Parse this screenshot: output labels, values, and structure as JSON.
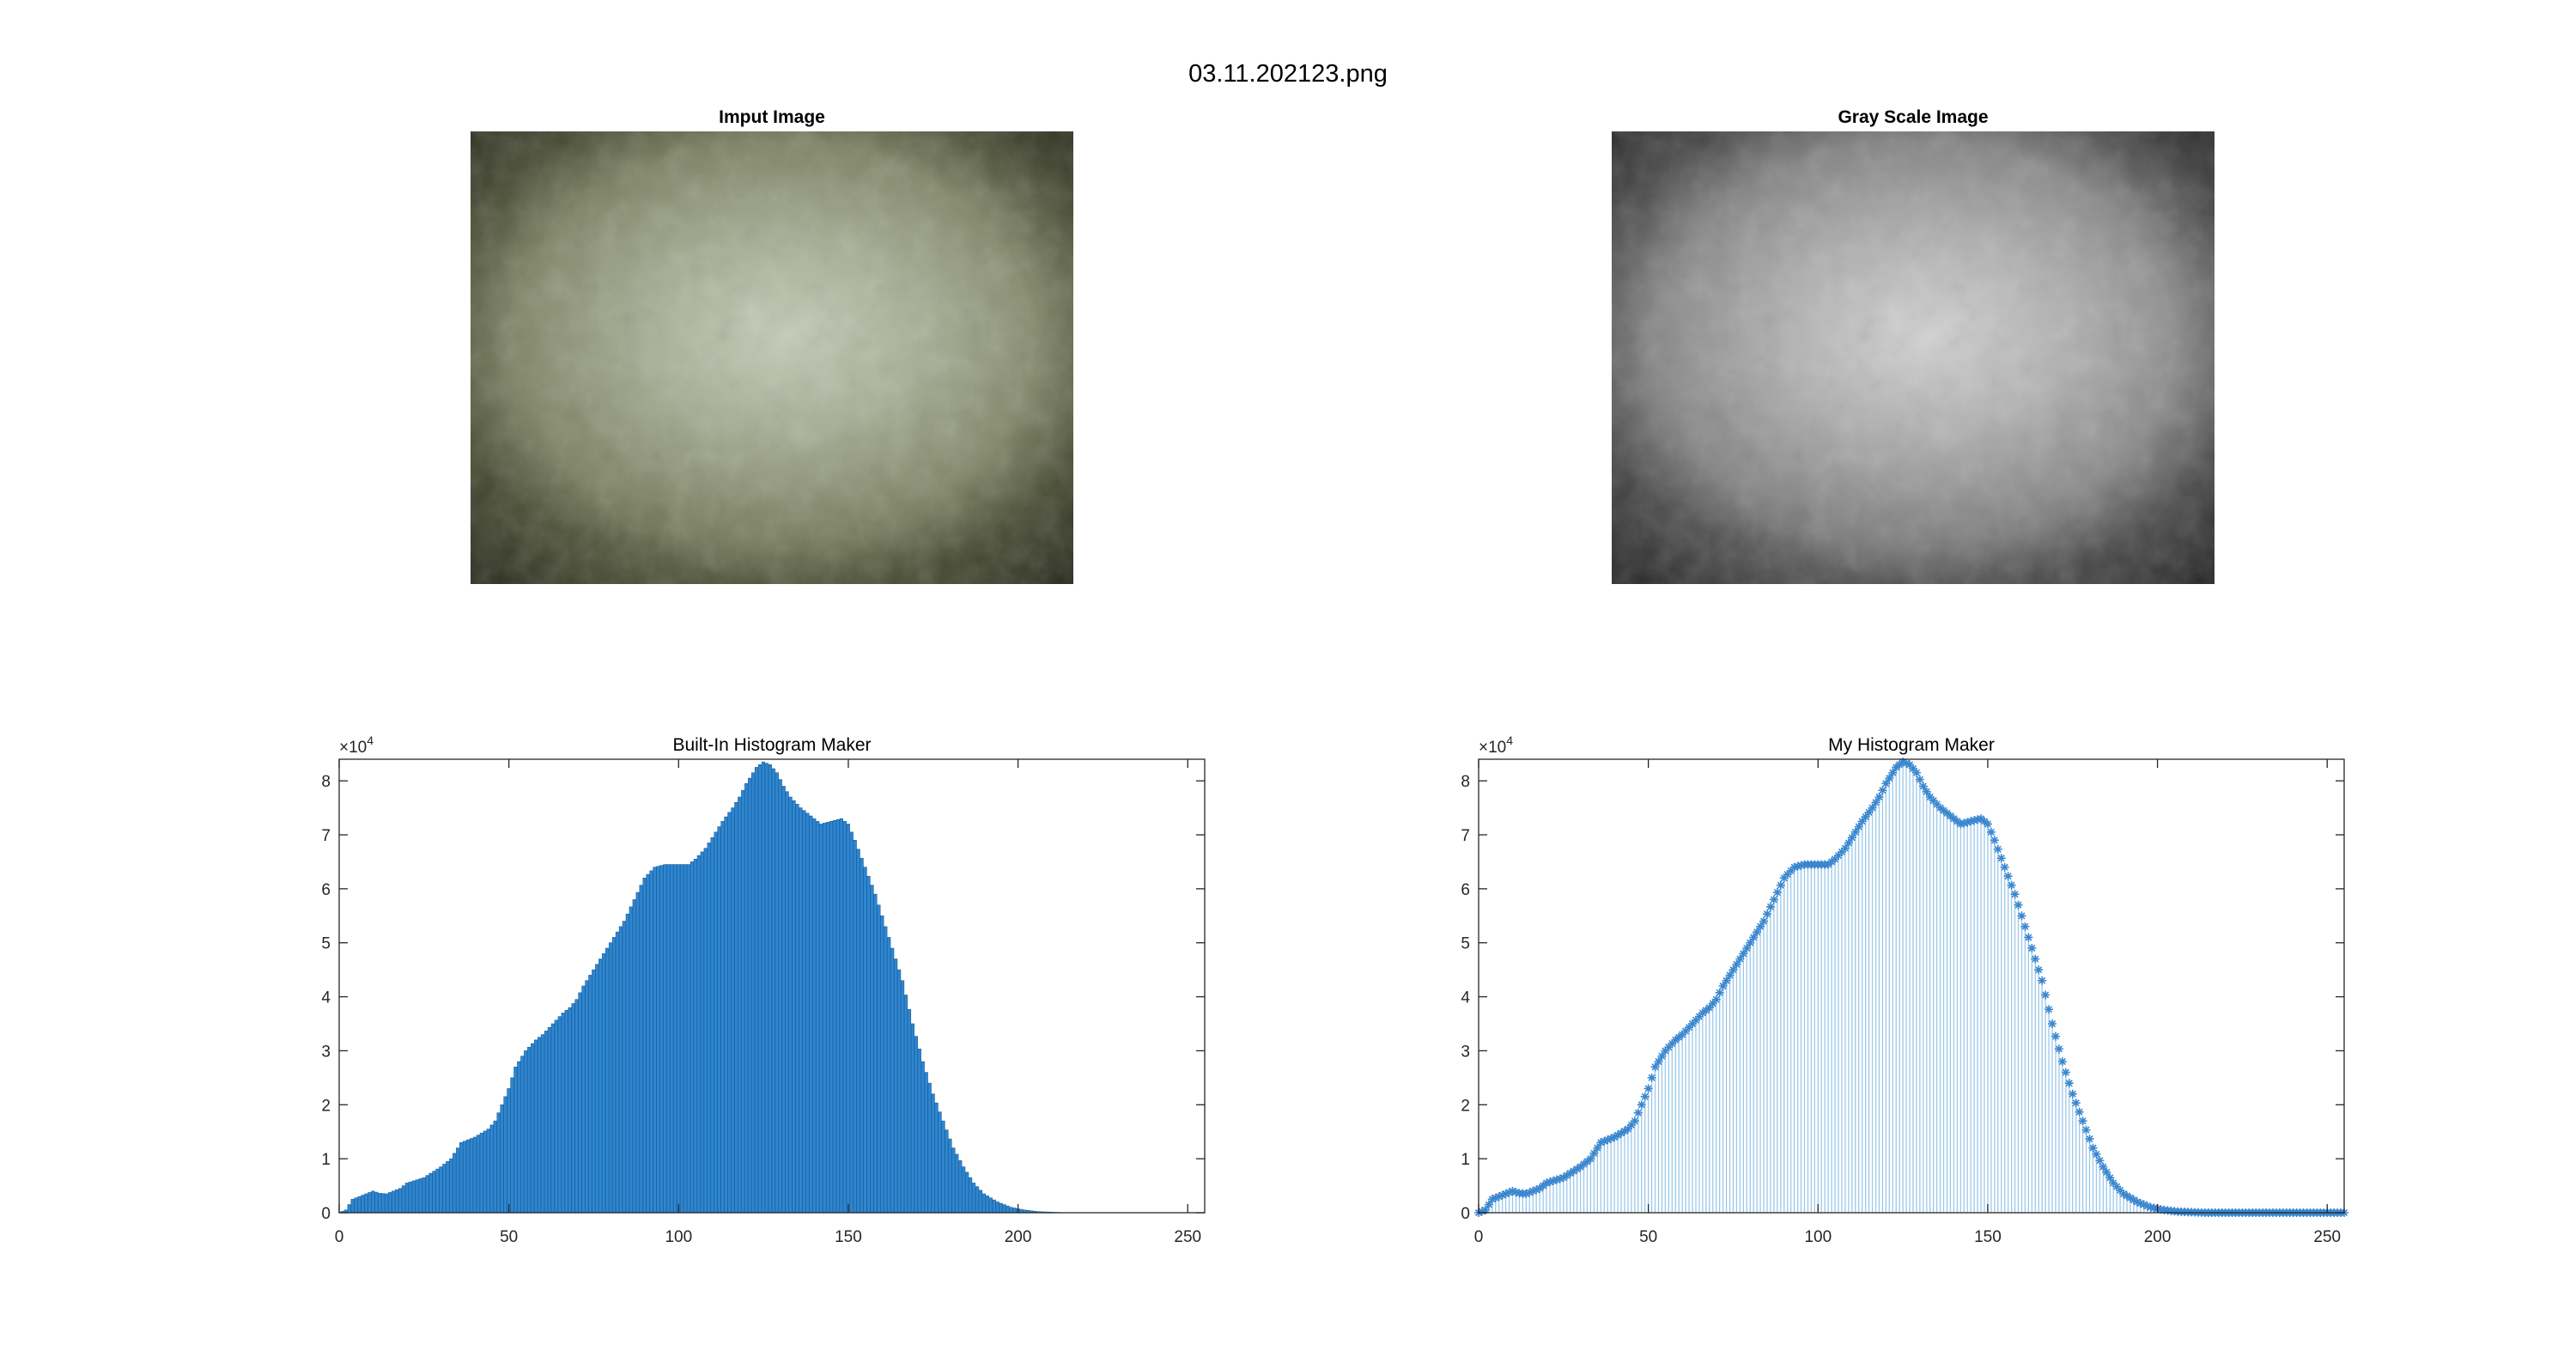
{
  "figure_title": "03.11.202123.png",
  "panels": {
    "input_title": "Imput Image",
    "gray_title": "Gray Scale Image"
  },
  "colors": {
    "bar_fill": "#2e86d0",
    "bar_edge": "#1a5f9e",
    "stem_line": "#9cc8ea",
    "marker": "#3a87cf"
  },
  "chart_data": [
    {
      "type": "bar",
      "title": "Built-In Histogram Maker",
      "xlabel": "",
      "ylabel": "",
      "exponent_label": "×10",
      "exponent_power": "4",
      "xlim": [
        0,
        255
      ],
      "ylim": [
        0,
        8.4
      ],
      "xticks": [
        0,
        50,
        100,
        150,
        200,
        250
      ],
      "yticks": [
        0,
        1,
        2,
        3,
        4,
        5,
        6,
        7,
        8
      ],
      "grid": false,
      "keypoints": [
        [
          0,
          0
        ],
        [
          2,
          0.05
        ],
        [
          4,
          0.25
        ],
        [
          6,
          0.3
        ],
        [
          8,
          0.35
        ],
        [
          10,
          0.4
        ],
        [
          12,
          0.36
        ],
        [
          14,
          0.35
        ],
        [
          16,
          0.4
        ],
        [
          18,
          0.45
        ],
        [
          20,
          0.55
        ],
        [
          25,
          0.65
        ],
        [
          30,
          0.85
        ],
        [
          33,
          1.0
        ],
        [
          36,
          1.3
        ],
        [
          40,
          1.4
        ],
        [
          44,
          1.55
        ],
        [
          46,
          1.7
        ],
        [
          48,
          2.0
        ],
        [
          50,
          2.3
        ],
        [
          52,
          2.7
        ],
        [
          55,
          3.0
        ],
        [
          58,
          3.2
        ],
        [
          60,
          3.3
        ],
        [
          63,
          3.5
        ],
        [
          66,
          3.7
        ],
        [
          68,
          3.8
        ],
        [
          70,
          3.95
        ],
        [
          72,
          4.2
        ],
        [
          75,
          4.5
        ],
        [
          78,
          4.8
        ],
        [
          81,
          5.1
        ],
        [
          84,
          5.4
        ],
        [
          87,
          5.8
        ],
        [
          90,
          6.2
        ],
        [
          93,
          6.4
        ],
        [
          96,
          6.45
        ],
        [
          100,
          6.45
        ],
        [
          103,
          6.45
        ],
        [
          105,
          6.55
        ],
        [
          108,
          6.75
        ],
        [
          110,
          6.95
        ],
        [
          113,
          7.25
        ],
        [
          116,
          7.5
        ],
        [
          118,
          7.7
        ],
        [
          120,
          7.95
        ],
        [
          123,
          8.25
        ],
        [
          125,
          8.35
        ],
        [
          127,
          8.3
        ],
        [
          129,
          8.15
        ],
        [
          131,
          7.9
        ],
        [
          133,
          7.7
        ],
        [
          136,
          7.5
        ],
        [
          139,
          7.35
        ],
        [
          142,
          7.2
        ],
        [
          145,
          7.25
        ],
        [
          148,
          7.3
        ],
        [
          150,
          7.2
        ],
        [
          152,
          6.9
        ],
        [
          155,
          6.4
        ],
        [
          158,
          5.9
        ],
        [
          160,
          5.5
        ],
        [
          163,
          4.9
        ],
        [
          166,
          4.3
        ],
        [
          169,
          3.5
        ],
        [
          172,
          2.8
        ],
        [
          175,
          2.2
        ],
        [
          178,
          1.7
        ],
        [
          181,
          1.2
        ],
        [
          184,
          0.85
        ],
        [
          187,
          0.55
        ],
        [
          190,
          0.35
        ],
        [
          194,
          0.2
        ],
        [
          198,
          0.1
        ],
        [
          202,
          0.05
        ],
        [
          206,
          0.02
        ],
        [
          210,
          0.01
        ],
        [
          214,
          0
        ],
        [
          255,
          0
        ]
      ]
    },
    {
      "type": "scatter",
      "title": "My Histogram Maker",
      "xlabel": "",
      "ylabel": "",
      "exponent_label": "×10",
      "exponent_power": "4",
      "xlim": [
        0,
        255
      ],
      "ylim": [
        0,
        8.4
      ],
      "xticks": [
        0,
        50,
        100,
        150,
        200,
        250
      ],
      "yticks": [
        0,
        1,
        2,
        3,
        4,
        5,
        6,
        7,
        8
      ],
      "grid": false,
      "keypoints": [
        [
          0,
          0
        ],
        [
          2,
          0.05
        ],
        [
          4,
          0.25
        ],
        [
          6,
          0.3
        ],
        [
          8,
          0.35
        ],
        [
          10,
          0.4
        ],
        [
          12,
          0.36
        ],
        [
          14,
          0.35
        ],
        [
          16,
          0.4
        ],
        [
          18,
          0.45
        ],
        [
          20,
          0.55
        ],
        [
          25,
          0.65
        ],
        [
          30,
          0.85
        ],
        [
          33,
          1.0
        ],
        [
          36,
          1.3
        ],
        [
          40,
          1.4
        ],
        [
          44,
          1.55
        ],
        [
          46,
          1.7
        ],
        [
          48,
          2.0
        ],
        [
          50,
          2.3
        ],
        [
          52,
          2.7
        ],
        [
          55,
          3.0
        ],
        [
          58,
          3.2
        ],
        [
          60,
          3.3
        ],
        [
          63,
          3.5
        ],
        [
          66,
          3.7
        ],
        [
          68,
          3.8
        ],
        [
          70,
          3.95
        ],
        [
          72,
          4.2
        ],
        [
          75,
          4.5
        ],
        [
          78,
          4.8
        ],
        [
          81,
          5.1
        ],
        [
          84,
          5.4
        ],
        [
          87,
          5.8
        ],
        [
          90,
          6.2
        ],
        [
          93,
          6.4
        ],
        [
          96,
          6.45
        ],
        [
          100,
          6.45
        ],
        [
          103,
          6.45
        ],
        [
          105,
          6.55
        ],
        [
          108,
          6.75
        ],
        [
          110,
          6.95
        ],
        [
          113,
          7.25
        ],
        [
          116,
          7.5
        ],
        [
          118,
          7.7
        ],
        [
          120,
          7.95
        ],
        [
          123,
          8.25
        ],
        [
          125,
          8.35
        ],
        [
          127,
          8.3
        ],
        [
          129,
          8.15
        ],
        [
          131,
          7.9
        ],
        [
          133,
          7.7
        ],
        [
          136,
          7.5
        ],
        [
          139,
          7.35
        ],
        [
          142,
          7.2
        ],
        [
          145,
          7.25
        ],
        [
          148,
          7.3
        ],
        [
          150,
          7.2
        ],
        [
          152,
          6.9
        ],
        [
          155,
          6.4
        ],
        [
          158,
          5.9
        ],
        [
          160,
          5.5
        ],
        [
          163,
          4.9
        ],
        [
          166,
          4.3
        ],
        [
          169,
          3.5
        ],
        [
          172,
          2.8
        ],
        [
          175,
          2.2
        ],
        [
          178,
          1.7
        ],
        [
          181,
          1.2
        ],
        [
          184,
          0.85
        ],
        [
          187,
          0.55
        ],
        [
          190,
          0.35
        ],
        [
          194,
          0.2
        ],
        [
          198,
          0.1
        ],
        [
          202,
          0.05
        ],
        [
          206,
          0.02
        ],
        [
          210,
          0.01
        ],
        [
          214,
          0
        ],
        [
          255,
          0
        ]
      ]
    }
  ]
}
